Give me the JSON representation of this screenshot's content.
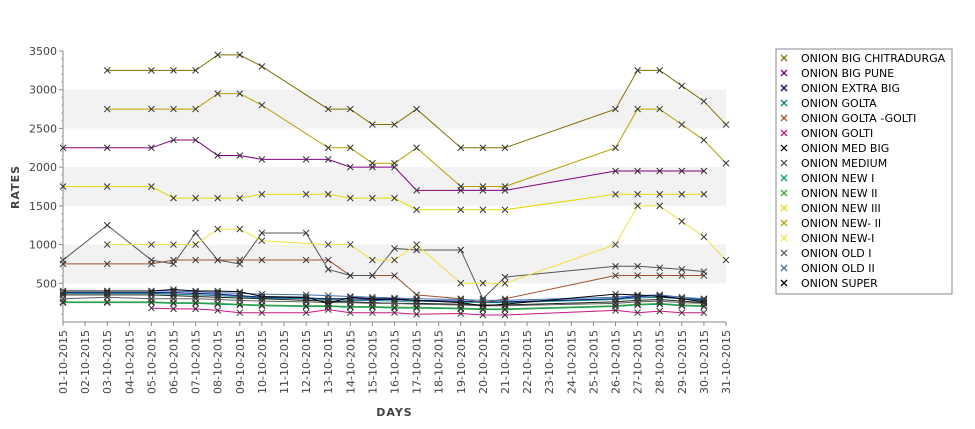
{
  "chart_data": {
    "type": "line",
    "title": "",
    "xlabel": "DAYS",
    "ylabel": "RATES",
    "ylim": [
      0,
      3500
    ],
    "yticks": [
      500,
      1000,
      1500,
      2000,
      2500,
      3000,
      3500
    ],
    "grid": "alternating horizontal bands",
    "legend_position": "right",
    "categories": [
      "01-10-2015",
      "02-10-2015",
      "03-10-2015",
      "04-10-2015",
      "05-10-2015",
      "06-10-2015",
      "07-10-2015",
      "08-10-2015",
      "09-10-2015",
      "10-10-2015",
      "11-10-2015",
      "12-10-2015",
      "13-10-2015",
      "14-10-2015",
      "15-10-2015",
      "16-10-2015",
      "17-10-2015",
      "18-10-2015",
      "19-10-2015",
      "20-10-2015",
      "21-10-2015",
      "22-10-2015",
      "23-10-2015",
      "24-10-2015",
      "25-10-2015",
      "26-10-2015",
      "27-10-2015",
      "28-10-2015",
      "29-10-2015",
      "30-10-2015",
      "31-10-2015"
    ],
    "series": [
      {
        "name": "ONION BIG CHITRADURGA",
        "color": "#807000",
        "values": [
          null,
          null,
          3250,
          null,
          3250,
          3250,
          3250,
          3450,
          3450,
          3300,
          null,
          null,
          2750,
          2750,
          2550,
          2550,
          2750,
          null,
          2250,
          2250,
          2250,
          null,
          null,
          null,
          null,
          2750,
          3250,
          3250,
          3050,
          2850,
          2550
        ]
      },
      {
        "name": "ONION BIG PUNE",
        "color": "#800080",
        "values": [
          2250,
          null,
          2250,
          null,
          2250,
          2350,
          2350,
          2150,
          2150,
          2100,
          null,
          2100,
          2100,
          2000,
          2000,
          2000,
          1700,
          null,
          1700,
          1700,
          1700,
          null,
          null,
          null,
          null,
          1950,
          1950,
          1950,
          1950,
          1950,
          null
        ]
      },
      {
        "name": "ONION EXTRA BIG",
        "color": "#000080",
        "values": [
          380,
          null,
          380,
          null,
          380,
          380,
          370,
          360,
          340,
          320,
          null,
          310,
          300,
          300,
          290,
          290,
          280,
          null,
          270,
          260,
          260,
          null,
          null,
          null,
          null,
          300,
          330,
          340,
          300,
          290,
          null
        ]
      },
      {
        "name": "ONION GOLTA",
        "color": "#008080",
        "values": [
          370,
          null,
          370,
          null,
          370,
          360,
          350,
          340,
          330,
          310,
          null,
          300,
          290,
          280,
          280,
          270,
          270,
          null,
          260,
          250,
          250,
          null,
          null,
          null,
          null,
          290,
          310,
          320,
          300,
          280,
          null
        ]
      },
      {
        "name": "ONION GOLTA -GOLTI",
        "color": "#a0522d",
        "values": [
          750,
          null,
          750,
          null,
          750,
          800,
          800,
          800,
          800,
          800,
          null,
          800,
          800,
          600,
          600,
          600,
          350,
          null,
          300,
          250,
          300,
          null,
          null,
          null,
          null,
          600,
          600,
          600,
          600,
          600,
          null
        ]
      },
      {
        "name": "ONION GOLTI",
        "color": "#c71585",
        "values": [
          null,
          null,
          null,
          null,
          180,
          170,
          170,
          150,
          120,
          120,
          null,
          120,
          160,
          120,
          120,
          120,
          100,
          null,
          110,
          90,
          90,
          null,
          null,
          null,
          null,
          150,
          120,
          140,
          120,
          120,
          null
        ]
      },
      {
        "name": "ONION MED BIG",
        "color": "#202020",
        "values": [
          350,
          null,
          350,
          null,
          350,
          340,
          330,
          320,
          310,
          300,
          null,
          280,
          270,
          260,
          250,
          240,
          240,
          null,
          230,
          220,
          220,
          null,
          null,
          null,
          null,
          260,
          280,
          290,
          270,
          250,
          null
        ]
      },
      {
        "name": "ONION MEDIUM",
        "color": "#555555",
        "values": [
          800,
          null,
          1250,
          null,
          800,
          750,
          1150,
          800,
          750,
          1150,
          null,
          1150,
          680,
          600,
          600,
          950,
          930,
          null,
          930,
          300,
          580,
          null,
          null,
          null,
          null,
          720,
          720,
          700,
          680,
          650,
          null
        ]
      },
      {
        "name": "ONION NEW I",
        "color": "#00a060",
        "values": [
          250,
          null,
          250,
          null,
          250,
          240,
          240,
          230,
          220,
          210,
          null,
          200,
          200,
          190,
          190,
          180,
          180,
          null,
          170,
          160,
          160,
          null,
          null,
          null,
          null,
          200,
          220,
          230,
          210,
          200,
          null
        ]
      },
      {
        "name": "ONION NEW II",
        "color": "#40a040",
        "values": [
          260,
          null,
          260,
          null,
          260,
          250,
          250,
          240,
          230,
          220,
          null,
          210,
          210,
          200,
          200,
          190,
          190,
          null,
          180,
          170,
          170,
          null,
          null,
          null,
          null,
          210,
          230,
          240,
          220,
          210,
          null
        ]
      },
      {
        "name": "ONION NEW III",
        "color": "#e6d800",
        "values": [
          1750,
          null,
          1750,
          null,
          1750,
          1600,
          1600,
          1600,
          1600,
          1650,
          null,
          1650,
          1650,
          1600,
          1600,
          1600,
          1450,
          null,
          1450,
          1450,
          1450,
          null,
          null,
          null,
          null,
          1650,
          1650,
          1650,
          1650,
          1650,
          null
        ]
      },
      {
        "name": "ONION NEW- II",
        "color": "#b8a000",
        "values": [
          null,
          null,
          2750,
          null,
          2750,
          2750,
          2750,
          2950,
          2950,
          2800,
          null,
          null,
          2250,
          2250,
          2050,
          2050,
          2250,
          null,
          1750,
          1750,
          1750,
          null,
          null,
          null,
          null,
          2250,
          2750,
          2750,
          2550,
          2350,
          2050
        ]
      },
      {
        "name": "ONION NEW-I",
        "color": "#f0e040",
        "values": [
          null,
          null,
          1000,
          null,
          1000,
          1000,
          1000,
          1200,
          1200,
          1050,
          null,
          null,
          1000,
          1000,
          800,
          800,
          1000,
          null,
          500,
          500,
          500,
          null,
          null,
          null,
          null,
          1000,
          1500,
          1500,
          1300,
          1100,
          800
        ]
      },
      {
        "name": "ONION OLD I",
        "color": "#606060",
        "values": [
          300,
          null,
          320,
          null,
          300,
          300,
          300,
          290,
          280,
          270,
          null,
          260,
          250,
          250,
          240,
          240,
          230,
          null,
          220,
          210,
          210,
          null,
          null,
          null,
          null,
          240,
          260,
          270,
          250,
          240,
          null
        ]
      },
      {
        "name": "ONION OLD II",
        "color": "#4070b0",
        "values": [
          400,
          null,
          400,
          null,
          400,
          400,
          390,
          380,
          370,
          360,
          null,
          350,
          340,
          330,
          320,
          310,
          300,
          null,
          290,
          280,
          280,
          null,
          null,
          null,
          null,
          320,
          340,
          350,
          320,
          300,
          null
        ]
      },
      {
        "name": "ONION SUPER",
        "color": "#000000",
        "values": [
          400,
          null,
          400,
          null,
          400,
          420,
          400,
          400,
          390,
          330,
          null,
          320,
          240,
          320,
          300,
          300,
          280,
          null,
          250,
          210,
          230,
          null,
          null,
          null,
          null,
          360,
          350,
          330,
          300,
          260,
          null
        ]
      }
    ]
  }
}
